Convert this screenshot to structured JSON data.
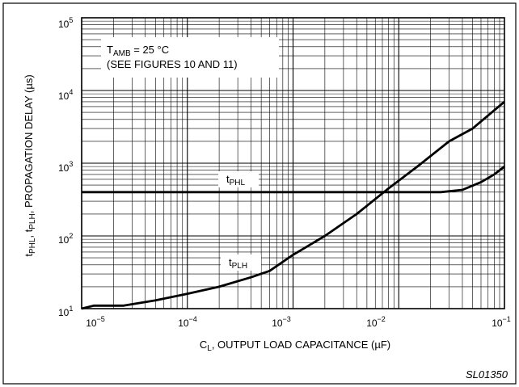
{
  "chart_data": {
    "type": "line",
    "xscale": "log",
    "yscale": "log",
    "xlim": [
      1e-05,
      0.1
    ],
    "ylim": [
      10,
      100000
    ],
    "grid": true,
    "xlabel": {
      "pre": "C",
      "sub": "L",
      "post": ", OUTPUT LOAD CAPACITANCE (µF)"
    },
    "ylabel": {
      "p1": "t",
      "s1": "PHL",
      "p2": ", t",
      "s2": "PLH",
      "p3": ", PROPAGATION DELAY (µs)"
    },
    "xticks": [
      {
        "base": "10",
        "exp": "−5"
      },
      {
        "base": "10",
        "exp": "−4"
      },
      {
        "base": "10",
        "exp": "−3"
      },
      {
        "base": "10",
        "exp": "−2"
      },
      {
        "base": "10",
        "exp": "−1"
      }
    ],
    "yticks": [
      {
        "base": "10",
        "exp": "1"
      },
      {
        "base": "10",
        "exp": "2"
      },
      {
        "base": "10",
        "exp": "3"
      },
      {
        "base": "10",
        "exp": "4"
      },
      {
        "base": "10",
        "exp": "5"
      }
    ],
    "annotation": {
      "line1_pre": "T",
      "line1_sub": "AMB",
      "line1_post": " = 25 °C",
      "line2": "(SEE FIGURES 10 AND 11)"
    },
    "series": [
      {
        "label_pre": "t",
        "label_sub": "PHL",
        "x": [
          1e-05,
          0.0005,
          0.005,
          0.025,
          0.04,
          0.06,
          0.08,
          0.1
        ],
        "y": [
          400,
          400,
          400,
          400,
          430,
          550,
          700,
          900
        ]
      },
      {
        "label_pre": "t",
        "label_sub": "PLH",
        "x": [
          1e-05,
          1.3e-05,
          2.5e-05,
          5e-05,
          0.0001,
          0.0002,
          0.0004,
          0.0006,
          0.001,
          0.002,
          0.004,
          0.008,
          0.015,
          0.03,
          0.05,
          0.1
        ],
        "y": [
          10,
          11,
          11,
          13,
          16,
          20,
          27,
          33,
          55,
          100,
          200,
          450,
          900,
          2000,
          3000,
          7000
        ]
      }
    ]
  },
  "figure_code": "SL01350"
}
